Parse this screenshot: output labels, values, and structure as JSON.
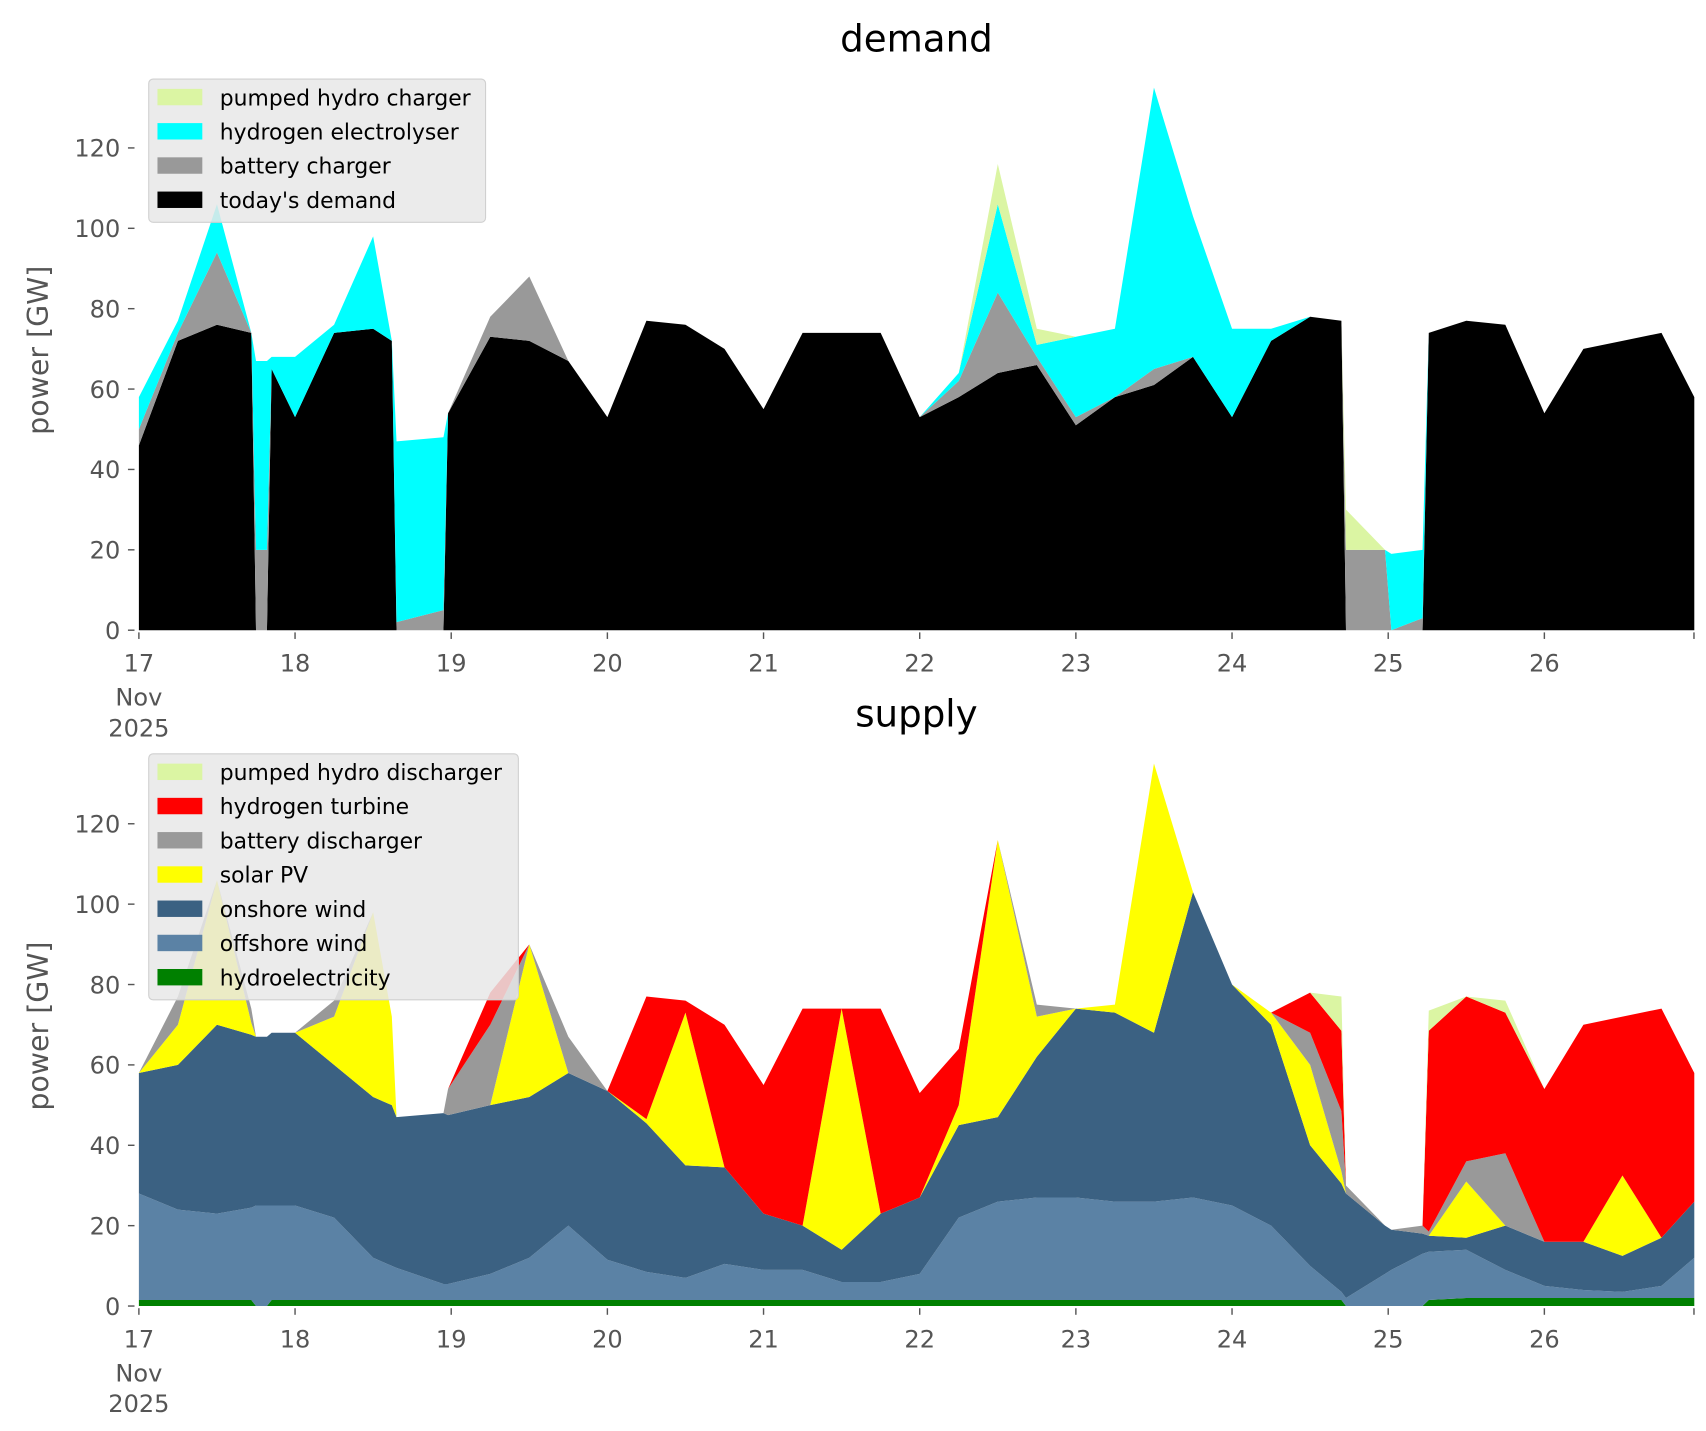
{
  "chart_data": [
    {
      "type": "area",
      "stacked": true,
      "title": "demand",
      "ylabel": "power [GW]",
      "xlabel": "",
      "ylim": [
        0,
        137
      ],
      "yticks": [
        0,
        20,
        40,
        60,
        80,
        100,
        120
      ],
      "xtick_labels": [
        "17",
        "18",
        "19",
        "20",
        "21",
        "22",
        "23",
        "24",
        "25",
        "26"
      ],
      "xtick_sublabels": [
        "Nov",
        "2025"
      ],
      "x_unit": "days since 17 Nov 2025",
      "legend_position": "upper-left",
      "x": [
        0,
        0.25,
        0.5,
        0.72,
        0.75,
        0.82,
        0.85,
        1,
        1.25,
        1.5,
        1.62,
        1.65,
        1.95,
        1.98,
        2.25,
        2.5,
        2.75,
        3,
        3.25,
        3.5,
        3.75,
        4,
        4.25,
        4.5,
        4.75,
        5,
        5.25,
        5.5,
        5.75,
        6,
        6.25,
        6.5,
        6.75,
        7,
        7.25,
        7.5,
        7.7,
        7.73,
        7.98,
        8.02,
        8.22,
        8.26,
        8.5,
        8.75,
        9,
        9.25,
        9.5,
        9.75,
        9.96
      ],
      "series": [
        {
          "name": "today's demand",
          "color": "#000000",
          "values": [
            46,
            72,
            76,
            74,
            0,
            0,
            65,
            53,
            74,
            75,
            72,
            0,
            0,
            54,
            73,
            72,
            67,
            53,
            77,
            76,
            70,
            55,
            74,
            74,
            74,
            53,
            58,
            64,
            66,
            51,
            58,
            61,
            68,
            53,
            72,
            78,
            77,
            0,
            0,
            0,
            0,
            74,
            77,
            76,
            54,
            70,
            72,
            74,
            58
          ]
        },
        {
          "name": "battery charger",
          "color": "#999999",
          "values": [
            4,
            2,
            18,
            0,
            20,
            20,
            0,
            0,
            0,
            0,
            0,
            2,
            5,
            0,
            5,
            16,
            0,
            0,
            0,
            0,
            0,
            0,
            0,
            0,
            0,
            0,
            4,
            20,
            2,
            2,
            0,
            4,
            0,
            0,
            0,
            0,
            0,
            20,
            20,
            0,
            3,
            0,
            0,
            0,
            0,
            0,
            0,
            0,
            0
          ]
        },
        {
          "name": "hydrogen electrolyser",
          "color": "#00ffff",
          "values": [
            8,
            3,
            12,
            0,
            47,
            47,
            3,
            15,
            2,
            23,
            0,
            45,
            43,
            0,
            0,
            0,
            0,
            0,
            0,
            0,
            0,
            0,
            0,
            0,
            0,
            0,
            2,
            22,
            3,
            20,
            17,
            70,
            35,
            22,
            3,
            0,
            0,
            0,
            0,
            19,
            17,
            0,
            0,
            0,
            0,
            0,
            0,
            0,
            0
          ]
        },
        {
          "name": "pumped hydro charger",
          "color": "#dbf5a3",
          "values": [
            0,
            0,
            0,
            0,
            0,
            0,
            0,
            0,
            0,
            0,
            0,
            0,
            0,
            0,
            0,
            0,
            0,
            0,
            0,
            0,
            0,
            0,
            0,
            0,
            0,
            0,
            0,
            10,
            4,
            0,
            0,
            0,
            0,
            0,
            0,
            0,
            0,
            10,
            0,
            0,
            0,
            0,
            0,
            0,
            0,
            0,
            0,
            0,
            0
          ]
        }
      ]
    },
    {
      "type": "area",
      "stacked": true,
      "title": "supply",
      "ylabel": "power [GW]",
      "xlabel": "",
      "ylim": [
        0,
        137
      ],
      "yticks": [
        0,
        20,
        40,
        60,
        80,
        100,
        120
      ],
      "xtick_labels": [
        "17",
        "18",
        "19",
        "20",
        "21",
        "22",
        "23",
        "24",
        "25",
        "26"
      ],
      "xtick_sublabels": [
        "Nov",
        "2025"
      ],
      "x_unit": "days since 17 Nov 2025",
      "legend_position": "upper-left",
      "x": [
        0,
        0.25,
        0.5,
        0.72,
        0.75,
        0.82,
        0.85,
        1,
        1.25,
        1.5,
        1.62,
        1.65,
        1.95,
        1.98,
        2.25,
        2.5,
        2.75,
        3,
        3.25,
        3.5,
        3.75,
        4,
        4.25,
        4.5,
        4.75,
        5,
        5.25,
        5.5,
        5.75,
        6,
        6.25,
        6.5,
        6.75,
        7,
        7.25,
        7.5,
        7.7,
        7.73,
        7.98,
        8.02,
        8.22,
        8.26,
        8.5,
        8.75,
        9,
        9.25,
        9.5,
        9.75,
        9.96
      ],
      "series": [
        {
          "name": "hydroelectricity",
          "color": "#008000",
          "values": [
            1.5,
            1.5,
            1.5,
            1.5,
            0,
            0,
            1.5,
            1.5,
            1.5,
            1.5,
            1.5,
            1.5,
            1.5,
            1.5,
            1.5,
            1.5,
            1.5,
            1.5,
            1.5,
            1.5,
            1.5,
            1.5,
            1.5,
            1.5,
            1.5,
            1.5,
            1.5,
            1.5,
            1.5,
            1.5,
            1.5,
            1.5,
            1.5,
            1.5,
            1.5,
            1.5,
            1.5,
            0,
            0,
            0,
            0,
            1.5,
            2,
            2,
            2,
            2,
            2,
            2,
            2
          ]
        },
        {
          "name": "offshore wind",
          "color": "#5b82a5",
          "values": [
            26.5,
            22.5,
            21.5,
            23,
            25,
            25,
            23.5,
            23.5,
            20.5,
            10.5,
            8.5,
            8,
            4,
            4,
            6.5,
            10.5,
            18.5,
            10,
            7,
            5.5,
            9,
            7.5,
            7.5,
            4.5,
            4.5,
            6.5,
            20.5,
            24.5,
            25.5,
            25.5,
            24.5,
            24.5,
            25.5,
            23.5,
            18.5,
            8.5,
            2,
            2,
            8,
            9,
            13,
            12,
            12,
            7,
            3,
            2,
            1.5,
            3,
            10
          ]
        },
        {
          "name": "onshore wind",
          "color": "#3b6182",
          "values": [
            30,
            36,
            47,
            43,
            42,
            42,
            43,
            43,
            38,
            40,
            40,
            37.5,
            42.5,
            42,
            42,
            40,
            38,
            42,
            37,
            28,
            24,
            14,
            11,
            8,
            17,
            19,
            23,
            21,
            35,
            47,
            47,
            42,
            76,
            55,
            50,
            30,
            27,
            26,
            12,
            10,
            5,
            4,
            3,
            11,
            11,
            12,
            9,
            12,
            14
          ]
        },
        {
          "name": "solar PV",
          "color": "#ffff00",
          "values": [
            0,
            10,
            36,
            3,
            0,
            0,
            0,
            0,
            12,
            46,
            22,
            0,
            0,
            0,
            0,
            38,
            0,
            0,
            1,
            38,
            0,
            0,
            0,
            60,
            0,
            0,
            5,
            69,
            10,
            0,
            2,
            67,
            0,
            0,
            3,
            20,
            3,
            0,
            0,
            0,
            0,
            0,
            14,
            0,
            0,
            0,
            20,
            0,
            0
          ]
        },
        {
          "name": "battery discharger",
          "color": "#999999",
          "values": [
            0,
            7,
            0,
            3.5,
            0,
            0,
            0,
            0,
            4,
            0,
            0,
            0,
            0,
            6.5,
            20,
            0,
            9,
            0,
            0,
            0,
            0,
            0,
            0,
            0,
            0,
            0,
            0,
            0,
            3,
            0,
            0,
            0,
            0,
            0,
            0,
            8,
            15,
            2,
            0,
            0,
            2,
            1,
            5,
            18,
            0,
            0,
            0,
            0,
            0
          ]
        },
        {
          "name": "hydrogen turbine",
          "color": "#ff0000",
          "values": [
            0,
            0,
            0,
            0,
            0,
            0,
            0,
            0,
            0,
            0,
            0,
            0,
            0,
            0,
            8,
            0,
            0,
            0,
            30.5,
            3,
            35.5,
            32,
            54,
            0,
            51,
            26,
            14,
            0,
            0,
            0,
            0,
            0,
            0,
            0,
            0,
            10,
            20,
            0,
            0,
            0,
            0,
            50,
            41,
            35,
            38,
            54,
            39.5,
            57,
            32
          ]
        },
        {
          "name": "pumped hydro discharger",
          "color": "#dbf5a3",
          "values": [
            0,
            0,
            0,
            0,
            0,
            0,
            0,
            0,
            0,
            0,
            0,
            0,
            0,
            0,
            0,
            0,
            0,
            0,
            0,
            0,
            0,
            0,
            0,
            0,
            0,
            0,
            0,
            0,
            0,
            0,
            0,
            0,
            0,
            0,
            0,
            0,
            8.5,
            0,
            0,
            0,
            0,
            5,
            0,
            3,
            0,
            0,
            0,
            0,
            0
          ]
        }
      ]
    }
  ]
}
